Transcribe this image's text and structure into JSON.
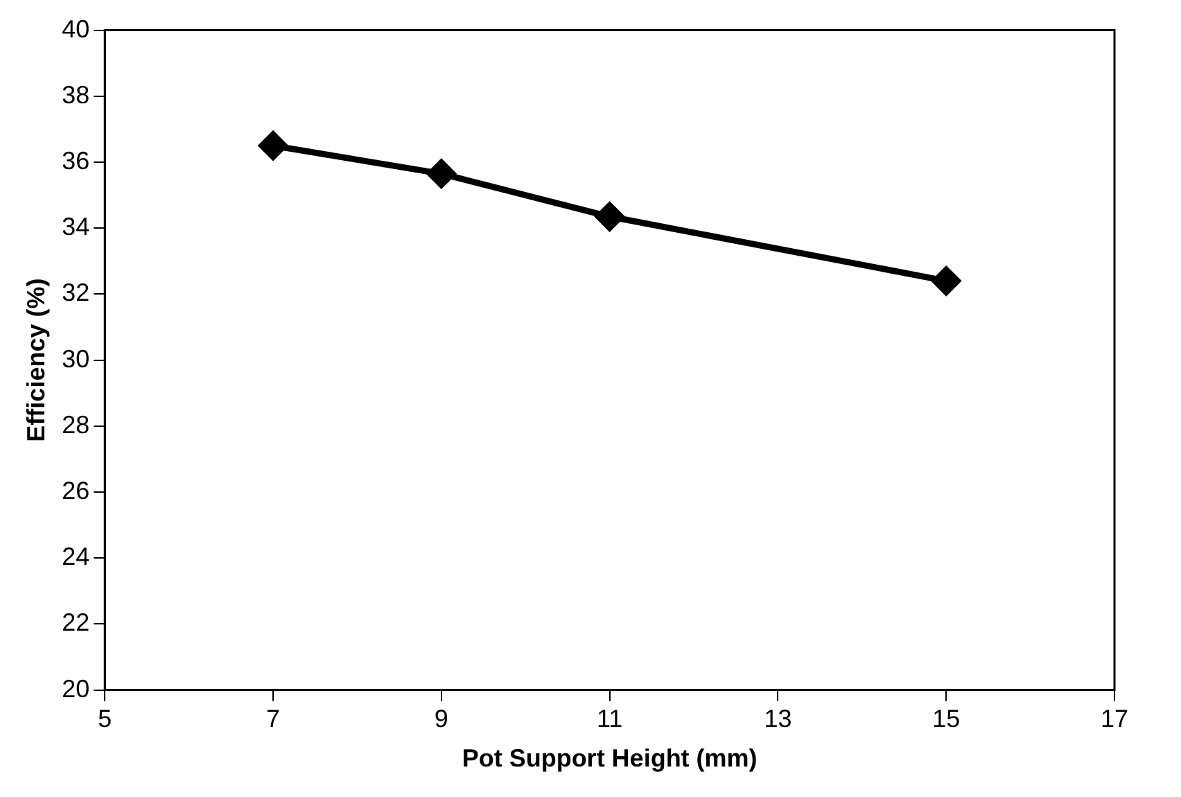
{
  "chart_data": {
    "type": "line",
    "xlabel": "Pot Support Height (mm)",
    "ylabel": "Efficiency (%)",
    "x": [
      7,
      9,
      11,
      15
    ],
    "series": [
      {
        "color": "#000000",
        "values": [
          36.5,
          35.65,
          34.35,
          32.4
        ]
      }
    ],
    "xlim": [
      5,
      17
    ],
    "xticks": [
      5,
      7,
      9,
      11,
      13,
      15,
      17
    ],
    "ylim": [
      20,
      40
    ],
    "yticks": [
      20,
      22,
      24,
      26,
      28,
      30,
      32,
      34,
      36,
      38,
      40
    ],
    "grid": false,
    "legend": false,
    "marker": "diamond",
    "line_style": "solid"
  }
}
